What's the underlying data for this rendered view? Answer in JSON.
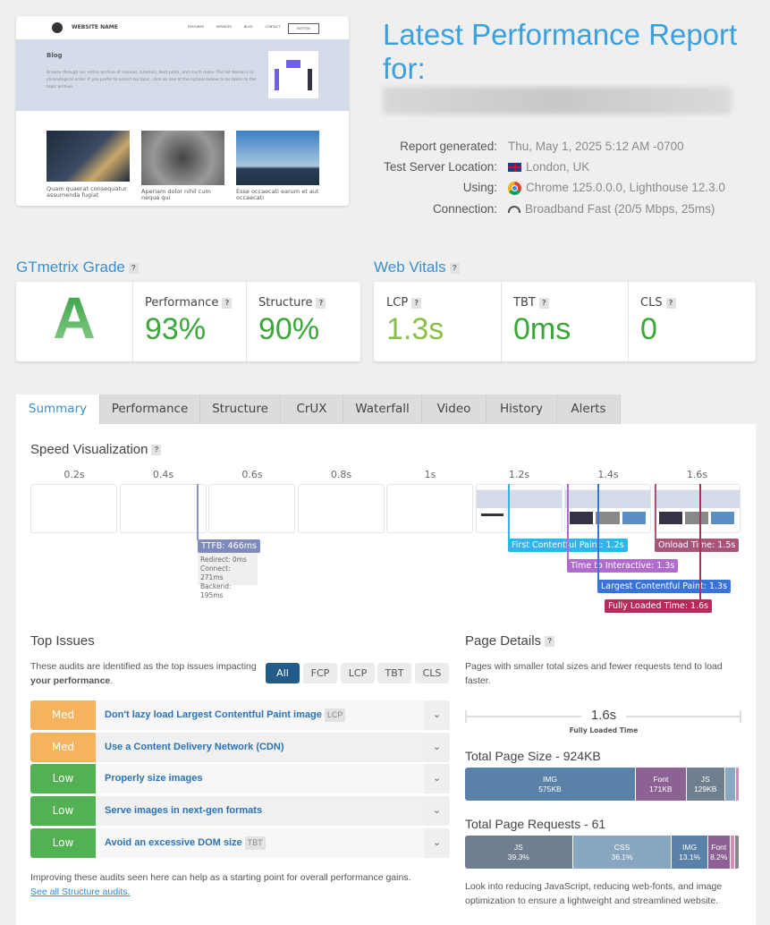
{
  "screenshot": {
    "site_name": "WEBSITE NAME",
    "nav": [
      "FEATURES",
      "SERVICES",
      "BLOG",
      "CONTACT"
    ],
    "button": "BUTTON",
    "heading": "Blog",
    "text": "Browse through our entire archive of reviews, tutorials, best picks, and much more. The list below is in chronological order. If you prefer to search by topic, click on one of the options below to be taken to the topic archive.",
    "posts": [
      "Quam quaerat consequatur assumenda fugiat",
      "Aperiam dolor nihil cum neque qui",
      "Esse occaecati earum et aut occaecati"
    ]
  },
  "header": {
    "title": "Latest Performance Report for:"
  },
  "info": [
    {
      "label": "Report generated:",
      "value": "Thu, May 1, 2025 5:12 AM -0700",
      "icon": ""
    },
    {
      "label": "Test Server Location:",
      "value": "London, UK",
      "icon": "uk-flag-icon"
    },
    {
      "label": "Using:",
      "value": "Chrome 125.0.0.0, Lighthouse 12.3.0",
      "icon": "chrome-icon"
    },
    {
      "label": "Connection:",
      "value": "Broadband Fast (20/5 Mbps, 25ms)",
      "icon": "speedometer-icon"
    }
  ],
  "grade": {
    "heading": "GTmetrix Grade",
    "letter": "A",
    "performance_label": "Performance",
    "performance": "93%",
    "structure_label": "Structure",
    "structure": "90%"
  },
  "vitals": {
    "heading": "Web Vitals",
    "lcp_label": "LCP",
    "lcp": "1.3s",
    "tbt_label": "TBT",
    "tbt": "0ms",
    "cls_label": "CLS",
    "cls": "0"
  },
  "tabs": [
    "Summary",
    "Performance",
    "Structure",
    "CrUX",
    "Waterfall",
    "Video",
    "History",
    "Alerts"
  ],
  "speed": {
    "heading": "Speed Visualization",
    "times": [
      "0.2s",
      "0.4s",
      "0.6s",
      "0.8s",
      "1s",
      "1.2s",
      "1.4s",
      "1.6s"
    ],
    "ttfb": "TTFB: 466ms",
    "ttfb_details": [
      "Redirect: 0ms",
      "Connect: 271ms",
      "Backend: 195ms"
    ],
    "fcp": "First Contentful Paint: 1.2s",
    "tti": "Time to Interactive: 1.3s",
    "lcp": "Largest Contentful Paint: 1.3s",
    "onload": "Onload Time: 1.5s",
    "fully": "Fully Loaded Time: 1.6s"
  },
  "issues": {
    "heading": "Top Issues",
    "desc": "These audits are identified as the top issues impacting ",
    "desc_bold": "your performance",
    "filters": [
      "All",
      "FCP",
      "LCP",
      "TBT",
      "CLS"
    ],
    "rows": [
      {
        "level": "Med",
        "title": "Don't lazy load Largest Contentful Paint image",
        "tag": "LCP"
      },
      {
        "level": "Med",
        "title": "Use a Content Delivery Network (CDN)",
        "tag": ""
      },
      {
        "level": "Low",
        "title": "Properly size images",
        "tag": ""
      },
      {
        "level": "Low",
        "title": "Serve images in next-gen formats",
        "tag": ""
      },
      {
        "level": "Low",
        "title": "Avoid an excessive DOM size",
        "tag": "TBT"
      }
    ],
    "footer": "Improving these audits seen here can help as a starting point for overall performance gains.",
    "link": "See all Structure audits."
  },
  "details": {
    "heading": "Page Details",
    "desc": "Pages with smaller total sizes and fewer requests tend to load faster.",
    "fully_loaded": "1.6s",
    "fully_loaded_label": "Fully Loaded Time",
    "size_title": "Total Page Size - 924KB",
    "size": [
      {
        "name": "IMG",
        "value": "575KB",
        "pct": 62.2
      },
      {
        "name": "Font",
        "value": "171KB",
        "pct": 18.5
      },
      {
        "name": "JS",
        "value": "129KB",
        "pct": 14
      },
      {
        "name": "",
        "value": "",
        "pct": 3.9
      },
      {
        "name": "",
        "value": "",
        "pct": 1.4
      }
    ],
    "req_title": "Total Page Requests - 61",
    "requests": [
      {
        "name": "JS",
        "value": "39.3%",
        "pct": 39.3
      },
      {
        "name": "CSS",
        "value": "36.1%",
        "pct": 36.1
      },
      {
        "name": "IMG",
        "value": "13.1%",
        "pct": 13.1
      },
      {
        "name": "Font",
        "value": "8.2%",
        "pct": 8.2
      },
      {
        "name": "",
        "value": "",
        "pct": 1.6
      },
      {
        "name": "",
        "value": "",
        "pct": 1.7
      }
    ],
    "footer": "Look into reducing JavaScript, reducing web-fonts, and image optimization to ensure a lightweight and streamlined website."
  },
  "colors": {
    "accent": "#3a8fd0",
    "med": "#f5b35d",
    "low": "#52b152",
    "grade": "#3ba73b"
  }
}
